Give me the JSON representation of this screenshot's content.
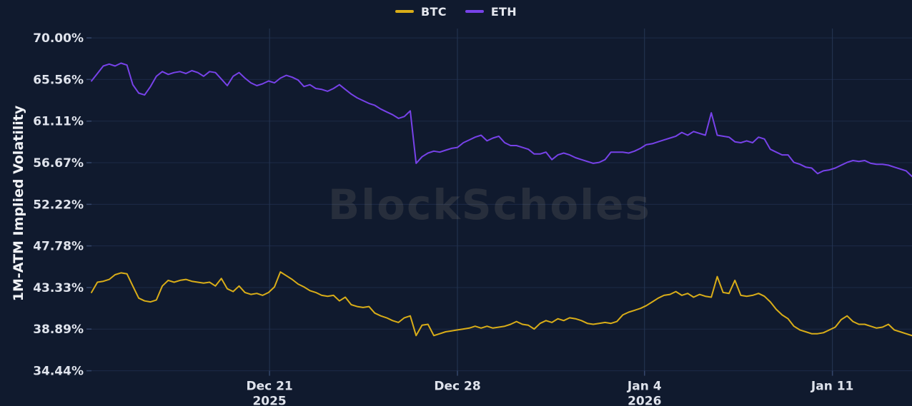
{
  "watermark": {
    "text": "BlockScholes"
  },
  "chart_data": {
    "type": "line",
    "title": "",
    "xlabel": "",
    "ylabel": "1M-ATM Implied Volatility",
    "grid": true,
    "legend_position": "top-center",
    "background_color": "#101a2e",
    "ylim": [
      33.8,
      71.0
    ],
    "y_tick_values": [
      70.0,
      65.56,
      61.11,
      56.67,
      52.22,
      47.78,
      43.33,
      38.89,
      34.44
    ],
    "y_tick_labels": [
      "70.00%",
      "65.56%",
      "61.11%",
      "56.67%",
      "52.22%",
      "47.78%",
      "43.33%",
      "38.89%",
      "34.44%"
    ],
    "x_ticks": [
      {
        "label": "Dec 21",
        "year": "2025",
        "f": 0.217
      },
      {
        "label": "Dec 28",
        "year": "",
        "f": 0.446
      },
      {
        "label": "Jan 4",
        "year": "2026",
        "f": 0.674
      },
      {
        "label": "Jan 11",
        "year": "",
        "f": 0.903
      }
    ],
    "series": [
      {
        "name": "BTC",
        "color": "#d9ad18",
        "unit": "%",
        "values": [
          42.8,
          43.9,
          44.0,
          44.2,
          44.7,
          44.9,
          44.8,
          43.5,
          42.2,
          41.9,
          41.8,
          42.0,
          43.5,
          44.1,
          43.9,
          44.1,
          44.2,
          44.0,
          43.9,
          43.8,
          43.9,
          43.5,
          44.3,
          43.2,
          42.9,
          43.5,
          42.8,
          42.6,
          42.7,
          42.5,
          42.8,
          43.4,
          45.0,
          44.6,
          44.2,
          43.7,
          43.4,
          43.0,
          42.8,
          42.5,
          42.4,
          42.5,
          41.9,
          42.3,
          41.5,
          41.3,
          41.2,
          41.3,
          40.6,
          40.3,
          40.1,
          39.8,
          39.6,
          40.1,
          40.3,
          38.2,
          39.3,
          39.4,
          38.2,
          38.4,
          38.6,
          38.7,
          38.8,
          38.9,
          39.0,
          39.2,
          39.0,
          39.2,
          39.0,
          39.1,
          39.2,
          39.4,
          39.7,
          39.4,
          39.3,
          38.9,
          39.5,
          39.8,
          39.6,
          40.0,
          39.8,
          40.1,
          40.0,
          39.8,
          39.5,
          39.4,
          39.5,
          39.6,
          39.5,
          39.7,
          40.4,
          40.7,
          40.9,
          41.1,
          41.4,
          41.8,
          42.2,
          42.5,
          42.6,
          42.9,
          42.5,
          42.7,
          42.3,
          42.6,
          42.4,
          42.3,
          44.5,
          42.8,
          42.7,
          44.1,
          42.5,
          42.4,
          42.5,
          42.7,
          42.4,
          41.8,
          41.0,
          40.4,
          40.0,
          39.2,
          38.8,
          38.6,
          38.4,
          38.4,
          38.5,
          38.8,
          39.1,
          39.9,
          40.3,
          39.7,
          39.4,
          39.4,
          39.2,
          39.0,
          39.1,
          39.4,
          38.8,
          38.6,
          38.4,
          38.2
        ]
      },
      {
        "name": "ETH",
        "color": "#7742e9",
        "unit": "%",
        "values": [
          65.4,
          66.2,
          67.0,
          67.2,
          67.0,
          67.3,
          67.1,
          65.0,
          64.1,
          63.9,
          64.8,
          65.9,
          66.4,
          66.1,
          66.3,
          66.4,
          66.2,
          66.5,
          66.3,
          65.9,
          66.4,
          66.3,
          65.6,
          64.9,
          65.9,
          66.3,
          65.7,
          65.2,
          64.9,
          65.1,
          65.4,
          65.2,
          65.7,
          66.0,
          65.8,
          65.5,
          64.8,
          65.0,
          64.6,
          64.5,
          64.3,
          64.6,
          65.0,
          64.5,
          64.0,
          63.6,
          63.3,
          63.0,
          62.8,
          62.4,
          62.1,
          61.8,
          61.4,
          61.6,
          62.2,
          56.6,
          57.3,
          57.7,
          57.9,
          57.8,
          58.0,
          58.2,
          58.3,
          58.8,
          59.1,
          59.4,
          59.6,
          59.0,
          59.3,
          59.5,
          58.8,
          58.5,
          58.5,
          58.3,
          58.1,
          57.6,
          57.6,
          57.8,
          57.0,
          57.5,
          57.7,
          57.5,
          57.2,
          57.0,
          56.8,
          56.6,
          56.7,
          57.0,
          57.8,
          57.8,
          57.8,
          57.7,
          57.9,
          58.2,
          58.6,
          58.7,
          58.9,
          59.1,
          59.3,
          59.5,
          59.9,
          59.6,
          60.0,
          59.8,
          59.6,
          62.0,
          59.6,
          59.5,
          59.4,
          58.9,
          58.8,
          59.0,
          58.8,
          59.4,
          59.2,
          58.1,
          57.8,
          57.5,
          57.5,
          56.7,
          56.5,
          56.2,
          56.1,
          55.5,
          55.8,
          55.9,
          56.1,
          56.4,
          56.7,
          56.9,
          56.8,
          56.9,
          56.6,
          56.5,
          56.5,
          56.4,
          56.2,
          56.0,
          55.8,
          55.2
        ]
      }
    ]
  }
}
